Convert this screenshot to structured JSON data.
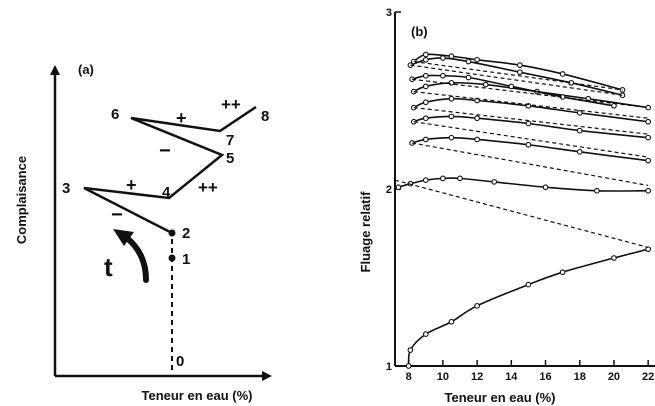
{
  "chart_data": [
    {
      "type": "line",
      "panel_label": "(a)",
      "xlabel": "Teneur en eau (%)",
      "ylabel": "Complaisance",
      "time_label": "t",
      "path_points": [
        {
          "label": "0"
        },
        {
          "label": "1"
        },
        {
          "label": "2"
        },
        {
          "label": "3"
        },
        {
          "label": "4"
        },
        {
          "label": "5"
        },
        {
          "label": "6"
        },
        {
          "label": "7"
        },
        {
          "label": "8"
        }
      ],
      "segment_signs": [
        {
          "sign": "−",
          "between": "2-3"
        },
        {
          "sign": "+",
          "between": "3-4"
        },
        {
          "sign": "++",
          "between": "4-5"
        },
        {
          "sign": "−",
          "between": "5-6"
        },
        {
          "sign": "+",
          "between": "6-7"
        },
        {
          "sign": "++",
          "between": "7-8"
        }
      ]
    },
    {
      "type": "line",
      "panel_label": "(b)",
      "xlabel": "Teneur en eau (%)",
      "ylabel": "Fluage relatif",
      "x_ticks": [
        "8",
        "10",
        "12",
        "14",
        "16",
        "18",
        "20",
        "22"
      ],
      "y_ticks": [
        "1",
        "2",
        "3"
      ],
      "xlim": [
        7.2,
        22.4
      ],
      "ylim": [
        1.0,
        3.0
      ],
      "grid": false,
      "series": [
        {
          "style": "solid",
          "x": [
            8.0,
            8.1,
            9.0,
            10.5,
            12.0,
            15.0,
            17.0,
            20.0,
            22.0
          ],
          "y": [
            1.0,
            1.09,
            1.18,
            1.25,
            1.34,
            1.46,
            1.53,
            1.61,
            1.66
          ]
        },
        {
          "style": "solid",
          "x": [
            7.4,
            8.1,
            9.0,
            10.0,
            11.0,
            13.0,
            16.0,
            19.0,
            22.0
          ],
          "y": [
            2.01,
            2.03,
            2.05,
            2.06,
            2.06,
            2.04,
            2.01,
            1.99,
            1.99
          ]
        },
        {
          "style": "solid",
          "x": [
            8.2,
            9.0,
            10.5,
            12.0,
            15.0,
            18.0,
            22.0
          ],
          "y": [
            2.26,
            2.28,
            2.29,
            2.28,
            2.25,
            2.21,
            2.16
          ]
        },
        {
          "style": "solid",
          "x": [
            8.3,
            9.0,
            10.5,
            12.0,
            15.0,
            18.0,
            22.0
          ],
          "y": [
            2.38,
            2.4,
            2.41,
            2.4,
            2.37,
            2.33,
            2.29
          ]
        },
        {
          "style": "solid",
          "x": [
            8.3,
            9.0,
            10.5,
            12.0,
            15.0,
            18.0,
            22.0
          ],
          "y": [
            2.46,
            2.49,
            2.51,
            2.5,
            2.47,
            2.43,
            2.38
          ]
        },
        {
          "style": "solid",
          "x": [
            8.3,
            9.0,
            10.5,
            12.5,
            15.5,
            18.5,
            22.0
          ],
          "y": [
            2.55,
            2.58,
            2.6,
            2.59,
            2.55,
            2.51,
            2.46
          ]
        },
        {
          "style": "solid",
          "x": [
            8.2,
            9.0,
            10.0,
            11.5,
            14.0,
            17.0,
            20.0
          ],
          "y": [
            2.62,
            2.64,
            2.64,
            2.63,
            2.58,
            2.52,
            2.47
          ]
        },
        {
          "style": "solid",
          "x": [
            8.1,
            9.0,
            10.0,
            11.5,
            14.5,
            17.5,
            20.5
          ],
          "y": [
            2.7,
            2.73,
            2.74,
            2.72,
            2.66,
            2.6,
            2.53
          ]
        },
        {
          "style": "solid",
          "x": [
            8.3,
            9.0,
            10.5,
            12.0,
            14.5,
            17.0,
            20.5
          ],
          "y": [
            2.72,
            2.76,
            2.75,
            2.73,
            2.7,
            2.65,
            2.56
          ]
        },
        {
          "style": "dashed",
          "x": [
            7.2,
            22.0
          ],
          "y": [
            2.05,
            1.67
          ]
        },
        {
          "style": "dashed",
          "x": [
            8.2,
            22.0
          ],
          "y": [
            2.26,
            2.02
          ]
        },
        {
          "style": "dashed",
          "x": [
            8.3,
            22.0
          ],
          "y": [
            2.38,
            2.18
          ]
        },
        {
          "style": "dashed",
          "x": [
            8.3,
            22.0
          ],
          "y": [
            2.46,
            2.31
          ]
        },
        {
          "style": "dashed",
          "x": [
            8.3,
            22.0
          ],
          "y": [
            2.55,
            2.4
          ]
        },
        {
          "style": "dashed",
          "x": [
            8.2,
            22.0
          ],
          "y": [
            2.62,
            2.46
          ]
        },
        {
          "style": "dashed",
          "x": [
            8.1,
            20.5
          ],
          "y": [
            2.7,
            2.53
          ]
        },
        {
          "style": "dashed",
          "x": [
            8.3,
            20.5
          ],
          "y": [
            2.72,
            2.56
          ]
        }
      ]
    }
  ]
}
